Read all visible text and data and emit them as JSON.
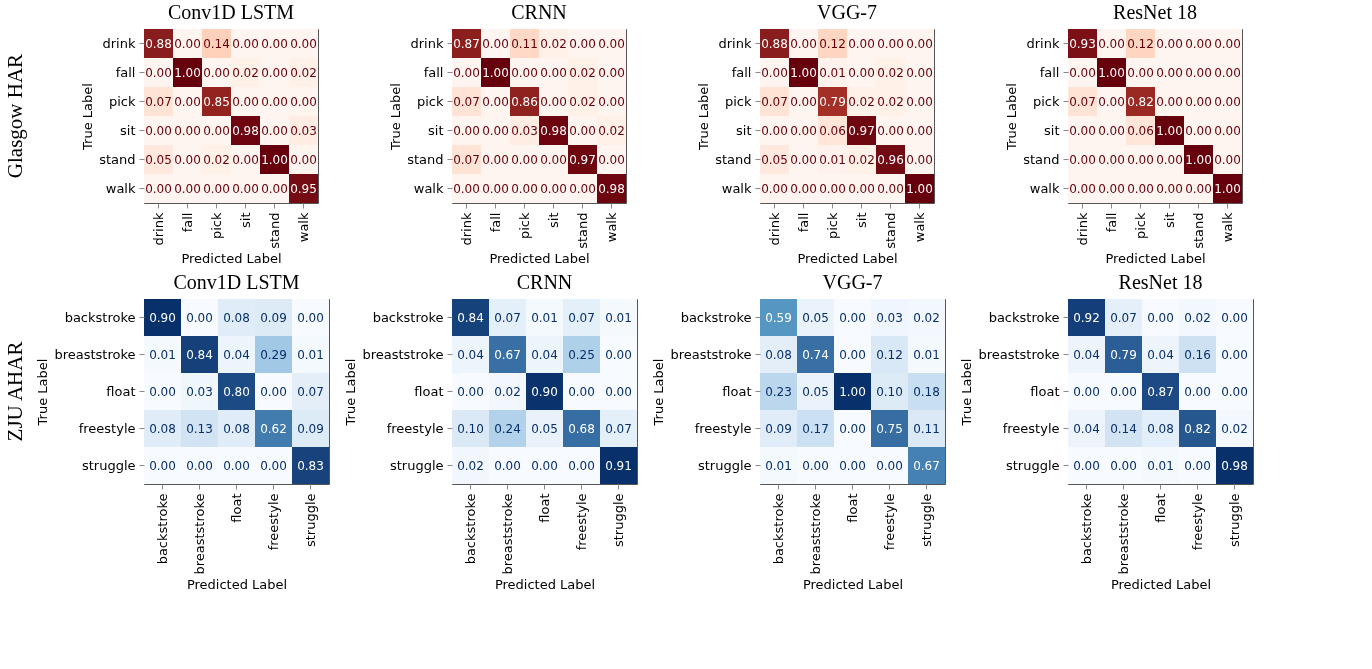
{
  "chart_data": [
    {
      "type": "heatmap",
      "title": "Conv1D LSTM",
      "xlabel": "Predicted Label",
      "ylabel": "True Label",
      "annotations": [
        "Glasgow HAR"
      ],
      "data_labels": true,
      "colors": [
        "#fff5f0",
        "#fb6a4a",
        "#67000d"
      ],
      "categories": [
        "drink",
        "fall",
        "pick",
        "sit",
        "stand",
        "walk"
      ],
      "y_categories": [
        "drink",
        "fall",
        "pick",
        "sit",
        "stand",
        "walk"
      ],
      "cells": [
        [
          0.88,
          0.0,
          0.14,
          0.0,
          0.0,
          0.0
        ],
        [
          0.0,
          1.0,
          0.0,
          0.02,
          0.0,
          0.02
        ],
        [
          0.07,
          0.0,
          0.85,
          0.0,
          0.0,
          0.0
        ],
        [
          0.0,
          0.0,
          0.0,
          0.98,
          0.0,
          0.03
        ],
        [
          0.05,
          0.0,
          0.02,
          0.0,
          1.0,
          0.0
        ],
        [
          0.0,
          0.0,
          0.0,
          0.0,
          0.0,
          0.95
        ]
      ],
      "cell_labels": [
        [
          "0.88",
          "0.00",
          "0.14",
          "0.00",
          "0.00",
          "0.00"
        ],
        [
          "0.00",
          "1.00",
          "0.00",
          "0.02",
          "0.00",
          "0.02"
        ],
        [
          "0.07",
          "0.00",
          "0.85",
          "0.00",
          "0.00",
          "0.00"
        ],
        [
          "0.00",
          "0.00",
          "0.00",
          "0.98",
          "0.00",
          "0.03"
        ],
        [
          "0.05",
          "0.00",
          "0.02",
          "0.00",
          "1.00",
          "0.00"
        ],
        [
          "0.00",
          "0.00",
          "0.00",
          "0.00",
          "0.00",
          "0.95"
        ]
      ]
    },
    {
      "type": "heatmap",
      "title": "CRNN",
      "xlabel": "Predicted Label",
      "ylabel": "True Label",
      "data_labels": true,
      "colors": [
        "#fff5f0",
        "#fb6a4a",
        "#67000d"
      ],
      "categories": [
        "drink",
        "fall",
        "pick",
        "sit",
        "stand",
        "walk"
      ],
      "y_categories": [
        "drink",
        "fall",
        "pick",
        "sit",
        "stand",
        "walk"
      ],
      "cells": [
        [
          0.87,
          0.0,
          0.11,
          0.02,
          0.0,
          0.0
        ],
        [
          0.0,
          1.0,
          0.0,
          0.0,
          0.02,
          0.0
        ],
        [
          0.07,
          0.0,
          0.86,
          0.0,
          0.02,
          0.0
        ],
        [
          0.0,
          0.0,
          0.03,
          0.98,
          0.0,
          0.02
        ],
        [
          0.07,
          0.0,
          0.0,
          0.0,
          0.97,
          0.0
        ],
        [
          0.0,
          0.0,
          0.0,
          0.0,
          0.0,
          0.98
        ]
      ],
      "cell_labels": [
        [
          "0.87",
          "0.00",
          "0.11",
          "0.02",
          "0.00",
          "0.00"
        ],
        [
          "0.00",
          "1.00",
          "0.00",
          "0.00",
          "0.02",
          "0.00"
        ],
        [
          "0.07",
          "0.00",
          "0.86",
          "0.00",
          "0.02",
          "0.00"
        ],
        [
          "0.00",
          "0.00",
          "0.03",
          "0.98",
          "0.00",
          "0.02"
        ],
        [
          "0.07",
          "0.00",
          "0.00",
          "0.00",
          "0.97",
          "0.00"
        ],
        [
          "0.00",
          "0.00",
          "0.00",
          "0.00",
          "0.00",
          "0.98"
        ]
      ]
    },
    {
      "type": "heatmap",
      "title": "VGG-7",
      "xlabel": "Predicted Label",
      "ylabel": "True Label",
      "data_labels": true,
      "colors": [
        "#fff5f0",
        "#fb6a4a",
        "#67000d"
      ],
      "categories": [
        "drink",
        "fall",
        "pick",
        "sit",
        "stand",
        "walk"
      ],
      "y_categories": [
        "drink",
        "fall",
        "pick",
        "sit",
        "stand",
        "walk"
      ],
      "cells": [
        [
          0.88,
          0.0,
          0.12,
          0.0,
          0.0,
          0.0
        ],
        [
          0.0,
          1.0,
          0.01,
          0.0,
          0.02,
          0.0
        ],
        [
          0.07,
          0.0,
          0.79,
          0.02,
          0.02,
          0.0
        ],
        [
          0.0,
          0.0,
          0.06,
          0.97,
          0.0,
          0.0
        ],
        [
          0.05,
          0.0,
          0.01,
          0.02,
          0.96,
          0.0
        ],
        [
          0.0,
          0.0,
          0.0,
          0.0,
          0.0,
          1.0
        ]
      ],
      "cell_labels": [
        [
          "0.88",
          "0.00",
          "0.12",
          "0.00",
          "0.00",
          "0.00"
        ],
        [
          "0.00",
          "1.00",
          "0.01",
          "0.00",
          "0.02",
          "0.00"
        ],
        [
          "0.07",
          "0.00",
          "0.79",
          "0.02",
          "0.02",
          "0.00"
        ],
        [
          "0.00",
          "0.00",
          "0.06",
          "0.97",
          "0.00",
          "0.00"
        ],
        [
          "0.05",
          "0.00",
          "0.01",
          "0.02",
          "0.96",
          "0.00"
        ],
        [
          "0.00",
          "0.00",
          "0.00",
          "0.00",
          "0.00",
          "1.00"
        ]
      ]
    },
    {
      "type": "heatmap",
      "title": "ResNet 18",
      "xlabel": "Predicted Label",
      "ylabel": "True Label",
      "data_labels": true,
      "colors": [
        "#fff5f0",
        "#fb6a4a",
        "#67000d"
      ],
      "categories": [
        "drink",
        "fall",
        "pick",
        "sit",
        "stand",
        "walk"
      ],
      "y_categories": [
        "drink",
        "fall",
        "pick",
        "sit",
        "stand",
        "walk"
      ],
      "cells": [
        [
          0.93,
          0.0,
          0.12,
          0.0,
          0.0,
          0.0
        ],
        [
          0.0,
          1.0,
          0.0,
          0.0,
          0.0,
          0.0
        ],
        [
          0.07,
          0.0,
          0.82,
          0.0,
          0.0,
          0.0
        ],
        [
          0.0,
          0.0,
          0.06,
          1.0,
          0.0,
          0.0
        ],
        [
          0.0,
          0.0,
          0.0,
          0.0,
          1.0,
          0.0
        ],
        [
          0.0,
          0.0,
          0.0,
          0.0,
          0.0,
          1.0
        ]
      ],
      "cell_labels": [
        [
          "0.93",
          "0.00",
          "0.12",
          "0.00",
          "0.00",
          "0.00"
        ],
        [
          "0.00",
          "1.00",
          "0.00",
          "0.00",
          "0.00",
          "0.00"
        ],
        [
          "0.07",
          "0.00",
          "0.82",
          "0.00",
          "0.00",
          "0.00"
        ],
        [
          "0.00",
          "0.00",
          "0.06",
          "1.00",
          "0.00",
          "0.00"
        ],
        [
          "0.00",
          "0.00",
          "0.00",
          "0.00",
          "1.00",
          "0.00"
        ],
        [
          "0.00",
          "0.00",
          "0.00",
          "0.00",
          "0.00",
          "1.00"
        ]
      ]
    },
    {
      "type": "heatmap",
      "title": "Conv1D LSTM",
      "xlabel": "Predicted Label",
      "ylabel": "True Label",
      "annotations": [
        "ZJU AHAR"
      ],
      "data_labels": true,
      "colors": [
        "#f7fbff",
        "#6baed6",
        "#08306b"
      ],
      "categories": [
        "backstroke",
        "breaststroke",
        "float",
        "freestyle",
        "struggle"
      ],
      "y_categories": [
        "backstroke",
        "breaststroke",
        "float",
        "freestyle",
        "struggle"
      ],
      "cells": [
        [
          0.9,
          0.0,
          0.08,
          0.09,
          0.0
        ],
        [
          0.01,
          0.84,
          0.04,
          0.29,
          0.01
        ],
        [
          0.0,
          0.03,
          0.8,
          0.0,
          0.07
        ],
        [
          0.08,
          0.13,
          0.08,
          0.62,
          0.09
        ],
        [
          0.0,
          0.0,
          0.0,
          0.0,
          0.83
        ]
      ],
      "cell_labels": [
        [
          "0.90",
          "0.00",
          "0.08",
          "0.09",
          "0.00"
        ],
        [
          "0.01",
          "0.84",
          "0.04",
          "0.29",
          "0.01"
        ],
        [
          "0.00",
          "0.03",
          "0.80",
          "0.00",
          "0.07"
        ],
        [
          "0.08",
          "0.13",
          "0.08",
          "0.62",
          "0.09"
        ],
        [
          "0.00",
          "0.00",
          "0.00",
          "0.00",
          "0.83"
        ]
      ]
    },
    {
      "type": "heatmap",
      "title": "CRNN",
      "xlabel": "Predicted Label",
      "ylabel": "True Label",
      "data_labels": true,
      "colors": [
        "#f7fbff",
        "#6baed6",
        "#08306b"
      ],
      "categories": [
        "backstroke",
        "breaststroke",
        "float",
        "freestyle",
        "struggle"
      ],
      "y_categories": [
        "backstroke",
        "breaststroke",
        "float",
        "freestyle",
        "struggle"
      ],
      "cells": [
        [
          0.84,
          0.07,
          0.01,
          0.07,
          0.01
        ],
        [
          0.04,
          0.67,
          0.04,
          0.25,
          0.0
        ],
        [
          0.0,
          0.02,
          0.9,
          0.0,
          0.0
        ],
        [
          0.1,
          0.24,
          0.05,
          0.68,
          0.07
        ],
        [
          0.02,
          0.0,
          0.0,
          0.0,
          0.91
        ]
      ],
      "cell_labels": [
        [
          "0.84",
          "0.07",
          "0.01",
          "0.07",
          "0.01"
        ],
        [
          "0.04",
          "0.67",
          "0.04",
          "0.25",
          "0.00"
        ],
        [
          "0.00",
          "0.02",
          "0.90",
          "0.00",
          "0.00"
        ],
        [
          "0.10",
          "0.24",
          "0.05",
          "0.68",
          "0.07"
        ],
        [
          "0.02",
          "0.00",
          "0.00",
          "0.00",
          "0.91"
        ]
      ]
    },
    {
      "type": "heatmap",
      "title": "VGG-7",
      "xlabel": "Predicted Label",
      "ylabel": "True Label",
      "data_labels": true,
      "colors": [
        "#f7fbff",
        "#6baed6",
        "#08306b"
      ],
      "categories": [
        "backstroke",
        "breaststroke",
        "float",
        "freestyle",
        "struggle"
      ],
      "y_categories": [
        "backstroke",
        "breaststroke",
        "float",
        "freestyle",
        "struggle"
      ],
      "cells": [
        [
          0.59,
          0.05,
          0.0,
          0.03,
          0.02
        ],
        [
          0.08,
          0.74,
          0.0,
          0.12,
          0.01
        ],
        [
          0.23,
          0.05,
          1.0,
          0.1,
          0.18
        ],
        [
          0.09,
          0.17,
          0.0,
          0.75,
          0.11
        ],
        [
          0.01,
          0.0,
          0.0,
          0.0,
          0.67
        ]
      ],
      "cell_labels": [
        [
          "0.59",
          "0.05",
          "0.00",
          "0.03",
          "0.02"
        ],
        [
          "0.08",
          "0.74",
          "0.00",
          "0.12",
          "0.01"
        ],
        [
          "0.23",
          "0.05",
          "1.00",
          "0.10",
          "0.18"
        ],
        [
          "0.09",
          "0.17",
          "0.00",
          "0.75",
          "0.11"
        ],
        [
          "0.01",
          "0.00",
          "0.00",
          "0.00",
          "0.67"
        ]
      ]
    },
    {
      "type": "heatmap",
      "title": "ResNet 18",
      "xlabel": "Predicted Label",
      "ylabel": "True Label",
      "data_labels": true,
      "colors": [
        "#f7fbff",
        "#6baed6",
        "#08306b"
      ],
      "categories": [
        "backstroke",
        "breaststroke",
        "float",
        "freestyle",
        "struggle"
      ],
      "y_categories": [
        "backstroke",
        "breaststroke",
        "float",
        "freestyle",
        "struggle"
      ],
      "cells": [
        [
          0.92,
          0.07,
          0.0,
          0.02,
          0.0
        ],
        [
          0.04,
          0.79,
          0.04,
          0.16,
          0.0
        ],
        [
          0.0,
          0.0,
          0.87,
          0.0,
          0.0
        ],
        [
          0.04,
          0.14,
          0.08,
          0.82,
          0.02
        ],
        [
          0.0,
          0.0,
          0.01,
          0.0,
          0.98
        ]
      ],
      "cell_labels": [
        [
          "0.92",
          "0.07",
          "0.00",
          "0.02",
          "0.00"
        ],
        [
          "0.04",
          "0.79",
          "0.04",
          "0.16",
          "0.00"
        ],
        [
          "0.00",
          "0.00",
          "0.87",
          "0.00",
          "0.00"
        ],
        [
          "0.04",
          "0.14",
          "0.08",
          "0.82",
          "0.02"
        ],
        [
          "0.00",
          "0.00",
          "0.01",
          "0.00",
          "0.98"
        ]
      ]
    }
  ]
}
